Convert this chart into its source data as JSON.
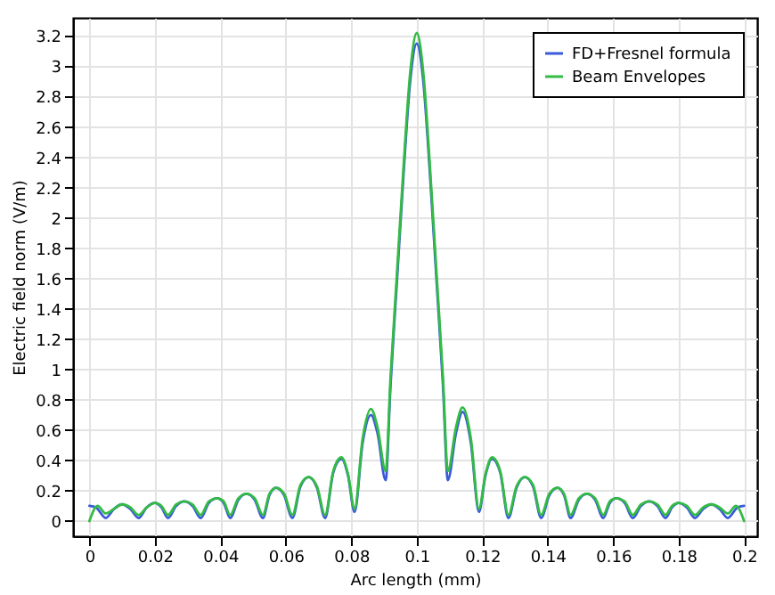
{
  "chart_data": {
    "type": "line",
    "xlabel": "Arc length (mm)",
    "ylabel": "Electric field norm (V/m)",
    "xlim": [
      -0.005,
      0.204
    ],
    "ylim": [
      -0.1,
      3.32
    ],
    "xticks": [
      0,
      0.02,
      0.04,
      0.06,
      0.08,
      0.1,
      0.12,
      0.14,
      0.16,
      0.18,
      0.2
    ],
    "yticks": [
      0,
      0.2,
      0.4,
      0.6,
      0.8,
      1,
      1.2,
      1.4,
      1.6,
      1.8,
      2,
      2.2,
      2.4,
      2.6,
      2.8,
      3,
      3.2
    ],
    "grid": true,
    "legend": "top right",
    "line_style": "solid",
    "marker": "none",
    "series": [
      {
        "name": "FD+Fresnel formula",
        "color": "#3a5bd9",
        "x": [
          0,
          0.002,
          0.005,
          0.0075,
          0.01,
          0.0125,
          0.015,
          0.0175,
          0.02,
          0.022,
          0.024,
          0.0265,
          0.029,
          0.0315,
          0.034,
          0.0365,
          0.039,
          0.041,
          0.043,
          0.0455,
          0.048,
          0.0505,
          0.053,
          0.055,
          0.057,
          0.0595,
          0.062,
          0.0645,
          0.067,
          0.0695,
          0.072,
          0.0745,
          0.077,
          0.079,
          0.081,
          0.0835,
          0.086,
          0.088,
          0.0905,
          0.092,
          0.094,
          0.096,
          0.098,
          0.1,
          0.102,
          0.104,
          0.106,
          0.108,
          0.1095,
          0.112,
          0.114,
          0.1165,
          0.119,
          0.121,
          0.123,
          0.1255,
          0.128,
          0.1305,
          0.133,
          0.1355,
          0.138,
          0.1405,
          0.143,
          0.145,
          0.147,
          0.1495,
          0.152,
          0.1545,
          0.157,
          0.159,
          0.161,
          0.1635,
          0.166,
          0.1685,
          0.171,
          0.1735,
          0.176,
          0.178,
          0.18,
          0.1825,
          0.185,
          0.1875,
          0.19,
          0.1925,
          0.195,
          0.198,
          0.2
        ],
        "values": [
          0.1,
          0.09,
          0.02,
          0.08,
          0.11,
          0.08,
          0.02,
          0.09,
          0.12,
          0.09,
          0.02,
          0.1,
          0.13,
          0.1,
          0.02,
          0.12,
          0.15,
          0.12,
          0.02,
          0.14,
          0.18,
          0.14,
          0.02,
          0.17,
          0.22,
          0.17,
          0.02,
          0.23,
          0.29,
          0.22,
          0.02,
          0.32,
          0.41,
          0.3,
          0.06,
          0.52,
          0.7,
          0.58,
          0.27,
          0.9,
          1.6,
          2.3,
          2.9,
          3.15,
          2.9,
          2.3,
          1.6,
          0.9,
          0.27,
          0.58,
          0.72,
          0.52,
          0.06,
          0.3,
          0.41,
          0.32,
          0.02,
          0.22,
          0.29,
          0.23,
          0.02,
          0.17,
          0.22,
          0.17,
          0.02,
          0.14,
          0.18,
          0.14,
          0.02,
          0.12,
          0.15,
          0.12,
          0.02,
          0.1,
          0.13,
          0.1,
          0.02,
          0.09,
          0.12,
          0.09,
          0.02,
          0.08,
          0.11,
          0.08,
          0.02,
          0.09,
          0.1
        ]
      },
      {
        "name": "Beam Envelopes",
        "color": "#33bb44",
        "x": [
          0,
          0.0025,
          0.005,
          0.0075,
          0.01,
          0.0125,
          0.015,
          0.0175,
          0.02,
          0.022,
          0.024,
          0.0265,
          0.029,
          0.0315,
          0.034,
          0.0365,
          0.039,
          0.041,
          0.043,
          0.0455,
          0.048,
          0.0505,
          0.053,
          0.055,
          0.057,
          0.0595,
          0.062,
          0.0645,
          0.067,
          0.0695,
          0.072,
          0.0745,
          0.077,
          0.079,
          0.081,
          0.0835,
          0.086,
          0.088,
          0.0905,
          0.092,
          0.094,
          0.096,
          0.098,
          0.1,
          0.102,
          0.104,
          0.106,
          0.108,
          0.1095,
          0.112,
          0.114,
          0.1165,
          0.119,
          0.121,
          0.123,
          0.1255,
          0.128,
          0.1305,
          0.133,
          0.1355,
          0.138,
          0.1405,
          0.143,
          0.145,
          0.147,
          0.1495,
          0.152,
          0.1545,
          0.157,
          0.159,
          0.161,
          0.1635,
          0.166,
          0.1685,
          0.171,
          0.1735,
          0.176,
          0.178,
          0.18,
          0.1825,
          0.185,
          0.1875,
          0.19,
          0.1925,
          0.195,
          0.1975,
          0.2
        ],
        "values": [
          0,
          0.1,
          0.05,
          0.08,
          0.11,
          0.09,
          0.04,
          0.09,
          0.12,
          0.1,
          0.04,
          0.11,
          0.13,
          0.11,
          0.04,
          0.13,
          0.15,
          0.13,
          0.04,
          0.15,
          0.18,
          0.15,
          0.04,
          0.18,
          0.22,
          0.18,
          0.04,
          0.24,
          0.29,
          0.23,
          0.04,
          0.33,
          0.42,
          0.31,
          0.08,
          0.55,
          0.74,
          0.62,
          0.33,
          0.95,
          1.65,
          2.35,
          2.96,
          3.22,
          2.96,
          2.35,
          1.65,
          0.95,
          0.33,
          0.62,
          0.75,
          0.55,
          0.08,
          0.31,
          0.42,
          0.33,
          0.04,
          0.23,
          0.29,
          0.24,
          0.04,
          0.18,
          0.22,
          0.18,
          0.04,
          0.15,
          0.18,
          0.15,
          0.04,
          0.13,
          0.15,
          0.13,
          0.04,
          0.11,
          0.13,
          0.11,
          0.04,
          0.1,
          0.12,
          0.1,
          0.04,
          0.09,
          0.11,
          0.09,
          0.05,
          0.1,
          0
        ]
      }
    ]
  }
}
